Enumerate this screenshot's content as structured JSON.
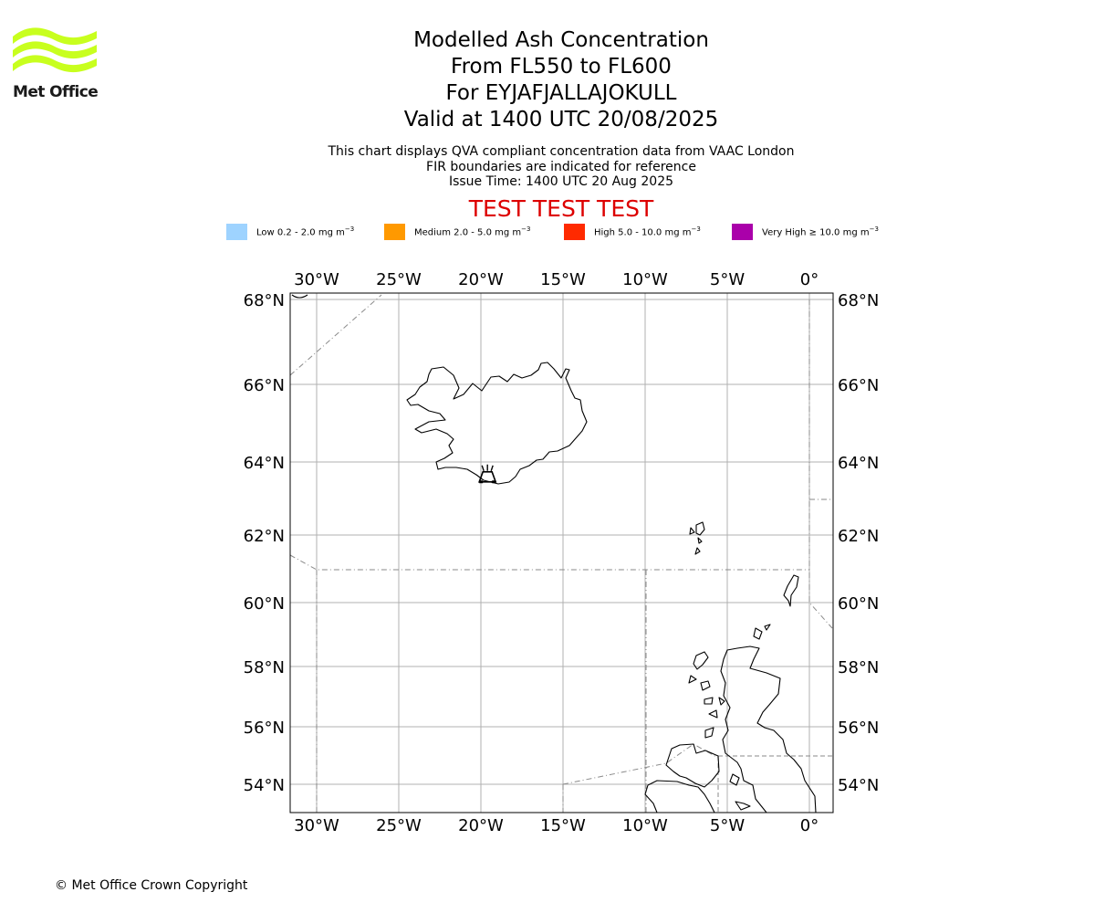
{
  "logo": {
    "text": "Met Office",
    "color": "#c8ff1e"
  },
  "titles": [
    "Modelled Ash Concentration",
    "From FL550 to FL600",
    "For EYJAFJALLAJOKULL",
    "Valid at 1400 UTC 20/08/2025"
  ],
  "subtitles": [
    "This chart displays QVA compliant concentration data from VAAC London",
    "FIR boundaries are indicated for reference",
    "Issue Time: 1400 UTC 20 Aug 2025"
  ],
  "test_banner": "TEST TEST TEST",
  "legend": [
    {
      "label": "Low 0.2 - 2.0 mg m",
      "exp": "−3",
      "color": "#9ed3ff"
    },
    {
      "label": "Medium 2.0 - 5.0 mg m",
      "exp": "−3",
      "color": "#ff9900"
    },
    {
      "label": "High 5.0 - 10.0 mg m",
      "exp": "−3",
      "color": "#ff2a00"
    },
    {
      "label": "Very High  ≥  10.0 mg m",
      "exp": "−3",
      "color": "#aa00aa"
    }
  ],
  "map": {
    "extent": {
      "lon": [
        -31.7,
        1.4
      ],
      "lat": [
        53.0,
        68.2
      ]
    },
    "lon_ticks": [
      {
        "value": -30,
        "label": "30°W"
      },
      {
        "value": -25,
        "label": "25°W"
      },
      {
        "value": -20,
        "label": "20°W"
      },
      {
        "value": -15,
        "label": "15°W"
      },
      {
        "value": -10,
        "label": "10°W"
      },
      {
        "value": -5,
        "label": "5°W"
      },
      {
        "value": 0,
        "label": "0°"
      }
    ],
    "lat_ticks": [
      {
        "value": 68,
        "label": "68°N"
      },
      {
        "value": 66,
        "label": "66°N"
      },
      {
        "value": 64,
        "label": "64°N"
      },
      {
        "value": 62,
        "label": "62°N"
      },
      {
        "value": 60,
        "label": "60°N"
      },
      {
        "value": 58,
        "label": "58°N"
      },
      {
        "value": 56,
        "label": "56°N"
      },
      {
        "value": 54,
        "label": "54°N"
      }
    ],
    "volcano": {
      "name": "EYJAFJALLAJOKULL",
      "lon": -19.6,
      "lat": 63.63,
      "icon": "volcano-icon"
    },
    "grid": true
  },
  "copyright": "© Met Office Crown Copyright"
}
